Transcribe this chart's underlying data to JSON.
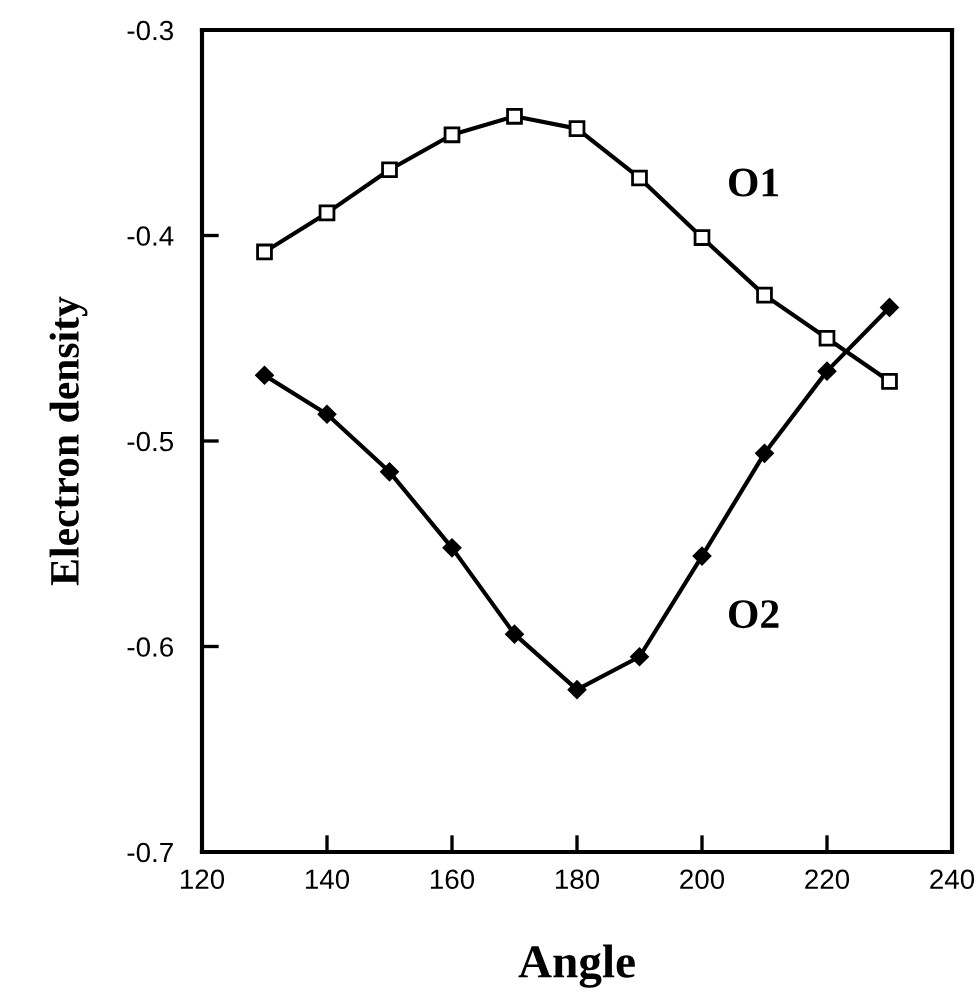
{
  "chart_data": {
    "type": "line",
    "xlabel": "Angle",
    "ylabel": "Electron density",
    "x": [
      130,
      140,
      150,
      160,
      170,
      180,
      190,
      200,
      210,
      220,
      230
    ],
    "series": [
      {
        "name": "O1",
        "color": "#000000",
        "marker": "square",
        "values": [
          -0.408,
          -0.389,
          -0.368,
          -0.351,
          -0.342,
          -0.348,
          -0.372,
          -0.401,
          -0.429,
          -0.45,
          -0.471
        ]
      },
      {
        "name": "O2",
        "color": "#000000",
        "marker": "diamond",
        "values": [
          -0.468,
          -0.487,
          -0.515,
          -0.552,
          -0.594,
          -0.621,
          -0.605,
          -0.556,
          -0.506,
          -0.466,
          -0.435
        ]
      }
    ],
    "xlim": [
      120,
      240
    ],
    "xticks": [
      120,
      140,
      160,
      180,
      200,
      220,
      240
    ],
    "ylim": [
      -0.7,
      -0.3
    ],
    "yticks": [
      -0.7,
      -0.6,
      -0.5,
      -0.4,
      -0.3
    ],
    "grid": false,
    "legend": false,
    "line_style": "solid"
  }
}
